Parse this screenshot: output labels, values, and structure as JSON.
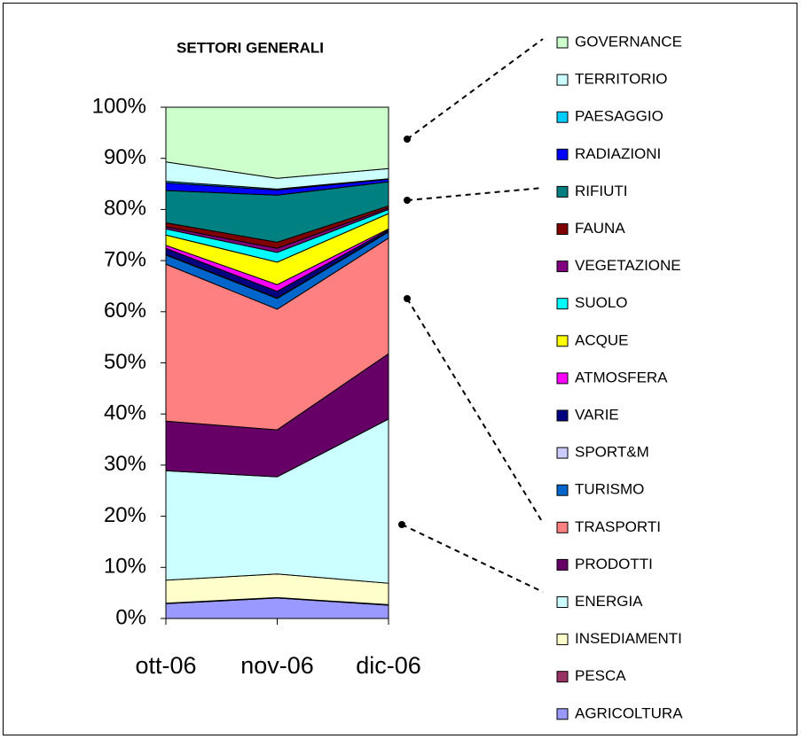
{
  "chart_data": {
    "type": "stacked_area_100",
    "title": "SETTORI GENERALI",
    "categories": [
      "ott-06",
      "nov-06",
      "dic-06"
    ],
    "ylim": [
      0,
      100
    ],
    "yticks": [
      {
        "value": 0,
        "label": "0%"
      },
      {
        "value": 10,
        "label": "10%"
      },
      {
        "value": 20,
        "label": "20%"
      },
      {
        "value": 30,
        "label": "30%"
      },
      {
        "value": 40,
        "label": "40%"
      },
      {
        "value": 50,
        "label": "50%"
      },
      {
        "value": 60,
        "label": "60%"
      },
      {
        "value": 70,
        "label": "70%"
      },
      {
        "value": 80,
        "label": "80%"
      },
      {
        "value": 90,
        "label": "90%"
      },
      {
        "value": 100,
        "label": "100%"
      }
    ],
    "grid": false,
    "legend": "right",
    "series": [
      {
        "name": "AGRICOLTURA",
        "color": "#9999ff",
        "values": [
          2.9,
          4.0,
          2.6
        ]
      },
      {
        "name": "PESCA",
        "color": "#993366",
        "values": [
          0.1,
          0.1,
          0.1
        ]
      },
      {
        "name": "INSEDIAMENTI",
        "color": "#ffffcc",
        "values": [
          4.5,
          4.6,
          4.2
        ]
      },
      {
        "name": "ENERGIA",
        "color": "#ccffff",
        "values": [
          21.4,
          19.0,
          32.1
        ]
      },
      {
        "name": "PRODOTTI",
        "color": "#660066",
        "values": [
          9.7,
          9.2,
          12.8
        ]
      },
      {
        "name": "TRASPORTI",
        "color": "#ff8080",
        "values": [
          30.7,
          23.6,
          22.6
        ]
      },
      {
        "name": "TURISMO",
        "color": "#0066cc",
        "values": [
          1.8,
          2.1,
          1.2
        ]
      },
      {
        "name": "SPORT&M",
        "color": "#ccccff",
        "values": [
          0.1,
          0.1,
          0.1
        ]
      },
      {
        "name": "VARIE",
        "color": "#000080",
        "values": [
          1.2,
          1.3,
          0.3
        ]
      },
      {
        "name": "ATMOSFERA",
        "color": "#ff00ff",
        "values": [
          0.6,
          1.3,
          0.2
        ]
      },
      {
        "name": "ACQUE",
        "color": "#ffff00",
        "values": [
          2.0,
          4.4,
          3.0
        ]
      },
      {
        "name": "SUOLO",
        "color": "#00ffff",
        "values": [
          1.2,
          1.9,
          0.8
        ]
      },
      {
        "name": "VEGETAZIONE",
        "color": "#800080",
        "values": [
          0.4,
          0.8,
          0.3
        ]
      },
      {
        "name": "FAUNA",
        "color": "#800000",
        "values": [
          0.8,
          1.2,
          0.4
        ]
      },
      {
        "name": "RIFIUTI",
        "color": "#008080",
        "values": [
          6.3,
          9.2,
          4.7
        ]
      },
      {
        "name": "RADIAZIONI",
        "color": "#0000ff",
        "values": [
          1.5,
          1.0,
          0.5
        ]
      },
      {
        "name": "PAESAGGIO",
        "color": "#00ccff",
        "values": [
          0.3,
          0.2,
          0.1
        ]
      },
      {
        "name": "TERRITORIO",
        "color": "#ccffff",
        "values": [
          3.8,
          2.1,
          2.0
        ]
      },
      {
        "name": "GOVERNANCE",
        "color": "#ccffcc",
        "values": [
          10.7,
          13.9,
          12.0
        ]
      }
    ]
  }
}
